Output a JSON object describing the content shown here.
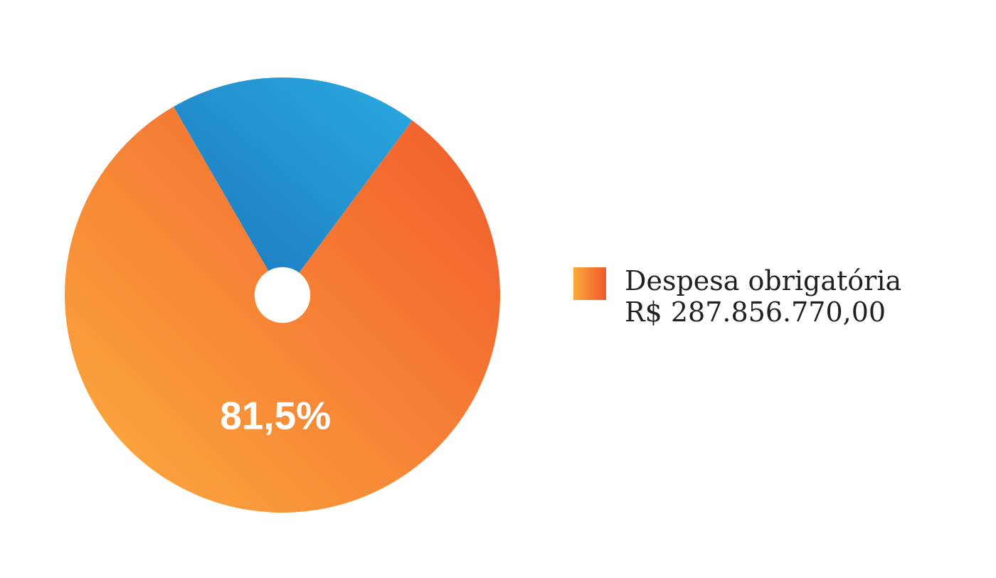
{
  "page": {
    "background_color": "#ffffff",
    "locale_note": "pt-BR decimal comma formatting"
  },
  "chart_data": {
    "type": "pie",
    "title": "",
    "donut": true,
    "hole_ratio": 0.128,
    "rotation_deg": 36.6,
    "legend_position": "right",
    "percent_label_color": "#ffffff",
    "slices": [
      {
        "name": "Despesa obrigatória",
        "value_label": "R$ 287.856.770,00",
        "percent": 81.5,
        "percent_label": "81,5%",
        "gradient": [
          "#F1572B",
          "#FBAC3F"
        ]
      },
      {
        "name": "",
        "value_label": "",
        "percent": 18.5,
        "percent_label": "",
        "gradient": [
          "#2AA9E0",
          "#1B74BB"
        ]
      }
    ],
    "legend": [
      {
        "label": "Despesa obrigatória",
        "value": "R$ 287.856.770,00",
        "swatch_gradient": [
          "#FAA93C",
          "#F1582B"
        ]
      }
    ]
  }
}
